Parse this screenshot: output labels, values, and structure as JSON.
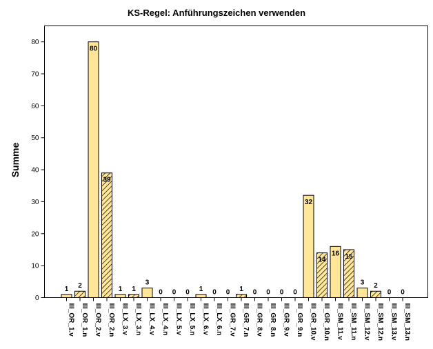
{
  "chart_data": {
    "type": "bar",
    "title": "KS-Regel: Anführungszeichen verwenden",
    "xlabel": "",
    "ylabel": "Summe",
    "ylim": [
      0,
      85
    ],
    "yticks": [
      0,
      10,
      20,
      30,
      40,
      50,
      60,
      70,
      80
    ],
    "grid": false,
    "legend": "none",
    "categories": [
      "III_OR_1.v",
      "III_OR_1.n",
      "III_OR_2.v",
      "III_OR_2.n",
      "III_LX_3.v",
      "III_LX_3.n",
      "III_LX_4.v",
      "III_LX_4.n",
      "III_LX_5.v",
      "III_LX_5.n",
      "III_LX_6.v",
      "III_LX_6.n",
      "III_GR_7.v",
      "III_GR_7.n",
      "III_GR_8.v",
      "III_GR_8.n",
      "III_GR_9.v",
      "III_GR_9.n",
      "III_GR_10.v",
      "III_GR_10.n",
      "III_SM_11.v",
      "III_SM_11.n",
      "III_SM_12.v",
      "III_SM_12.n",
      "III_SM_13.v",
      "III_SM_13.n"
    ],
    "values": [
      1,
      2,
      80,
      39,
      1,
      1,
      3,
      0,
      0,
      0,
      1,
      0,
      0,
      1,
      0,
      0,
      0,
      0,
      32,
      14,
      16,
      15,
      3,
      2,
      0,
      0
    ],
    "data_labels": [
      "1",
      "2",
      "80",
      "39",
      "1",
      "1",
      "3",
      "0",
      "0",
      "0",
      "1",
      "0",
      "0",
      "1",
      "0",
      "0",
      "0",
      "0",
      "32",
      "14",
      "16",
      "15",
      "3",
      "2",
      "0",
      "0"
    ],
    "colors": {
      "bar_fill": "#ffe699",
      "bar_stroke": "#000000",
      "hatch": "#000000",
      "axis": "#000000"
    }
  }
}
